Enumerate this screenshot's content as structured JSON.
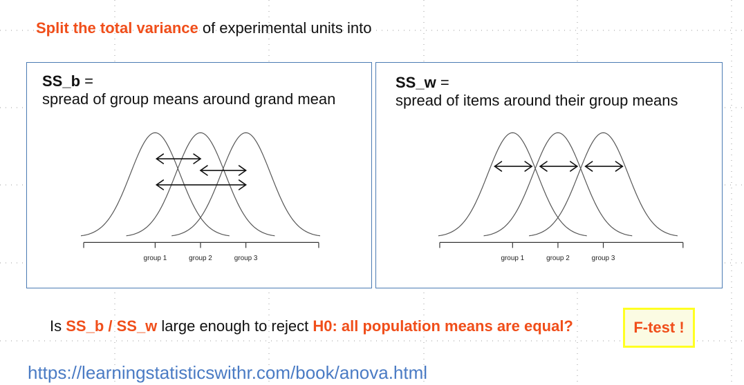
{
  "title": {
    "highlight": "Split the total variance",
    "rest": " of experimental units into"
  },
  "panels": [
    {
      "name": "ss-b",
      "label": "SS_b",
      "eq": " =",
      "description": "spread of group means around grand mean",
      "groups": [
        "group 1",
        "group 2",
        "group 3"
      ]
    },
    {
      "name": "ss-w",
      "label": "SS_w",
      "eq": " =",
      "description": "spread of items around their group means",
      "groups": [
        "group 1",
        "group 2",
        "group 3"
      ]
    }
  ],
  "question": {
    "prefix": "Is ",
    "ratio": "SS_b / SS_w",
    "middle": " large enough to reject  ",
    "hypothesis": "H0: all population means are equal?"
  },
  "ftest": "F-test !",
  "link": "https://learningstatisticswithr.com/book/anova.html",
  "colors": {
    "accent": "#f04e1a",
    "panel_border": "#4a7ab3",
    "link": "#4a7bc4",
    "highlight_box": "#ffff22"
  }
}
